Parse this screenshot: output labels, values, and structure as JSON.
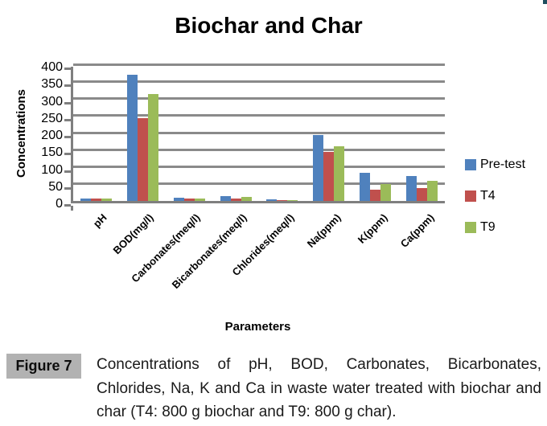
{
  "page": {
    "corner_mark_color": "#1f4e5f"
  },
  "chart_data": {
    "type": "bar",
    "title": "Biochar and Char",
    "xlabel": "Parameters",
    "ylabel": "Concentrations",
    "ylim": [
      0,
      400
    ],
    "ytick_step": 50,
    "grid": true,
    "legend_position": "right",
    "categories": [
      "pH",
      "BOD(mg/l)",
      "Carbonates(meq/l)",
      "Bicarbonates(meq/l)",
      "Chlorides(meq/l)",
      "Na(ppm)",
      "K(ppm)",
      "Ca(ppm)"
    ],
    "series": [
      {
        "name": "Pre-test",
        "color": "#4F81BD",
        "values": [
          8,
          370,
          9,
          13,
          5,
          192,
          83,
          74
        ]
      },
      {
        "name": "T4",
        "color": "#C0504D",
        "values": [
          7,
          243,
          6,
          8,
          3,
          144,
          33,
          37
        ]
      },
      {
        "name": "T9",
        "color": "#9BBB59",
        "values": [
          7,
          312,
          6.5,
          11,
          2,
          161,
          49,
          59
        ]
      }
    ]
  },
  "caption": {
    "label": "Figure 7",
    "text": "Concentrations of pH, BOD, Carbonates, Bicarbonates, Chlorides, Na, K and Ca in waste water treated with biochar and char (T4: 800 g biochar and T9: 800 g char)."
  },
  "colors": {
    "axis": "#7F7F7F",
    "gridline": "#8A8A8A",
    "figure_label_bg": "#B2B2B2"
  }
}
